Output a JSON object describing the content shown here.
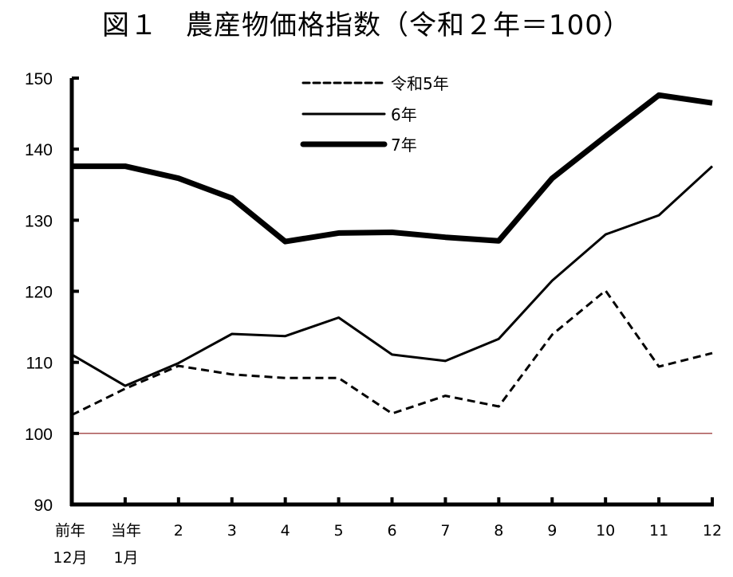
{
  "title": "図１　農産物価格指数（令和２年＝100）",
  "chart_data": {
    "type": "line",
    "title": "図１　農産物価格指数（令和２年＝100）",
    "xlabel": "",
    "ylabel": "",
    "ylim": [
      90,
      150
    ],
    "yticks": [
      90,
      100,
      110,
      120,
      130,
      140,
      150
    ],
    "grid": false,
    "reference_line": {
      "value": 100,
      "color": "#8b1a1a"
    },
    "legend_position": "top-center",
    "categories": [
      "前年\n12月",
      "当年\n1月",
      "2",
      "3",
      "4",
      "5",
      "6",
      "7",
      "8",
      "9",
      "10",
      "11",
      "12"
    ],
    "category_lines": [
      [
        "前年",
        "12月"
      ],
      [
        "当年",
        "1月"
      ],
      [
        "2"
      ],
      [
        "3"
      ],
      [
        "4"
      ],
      [
        "5"
      ],
      [
        "6"
      ],
      [
        "7"
      ],
      [
        "8"
      ],
      [
        "9"
      ],
      [
        "10"
      ],
      [
        "11"
      ],
      [
        "12"
      ]
    ],
    "series": [
      {
        "name": "令和5年",
        "style": "dashed",
        "width": 3,
        "values": [
          102.6,
          106.3,
          109.5,
          108.3,
          107.8,
          107.8,
          102.8,
          105.3,
          103.8,
          113.9,
          120.1,
          109.4,
          111.3
        ]
      },
      {
        "name": "6年",
        "style": "solid",
        "width": 3,
        "values": [
          111.1,
          106.7,
          109.9,
          114.0,
          113.7,
          116.3,
          111.1,
          110.2,
          113.3,
          121.5,
          128.0,
          130.7,
          137.6
        ]
      },
      {
        "name": "7年",
        "style": "solid",
        "width": 7,
        "values": [
          137.6,
          137.6,
          135.9,
          133.1,
          127.0,
          128.2,
          128.3,
          127.6,
          127.1,
          135.9,
          141.8,
          147.6,
          146.5
        ]
      }
    ]
  }
}
